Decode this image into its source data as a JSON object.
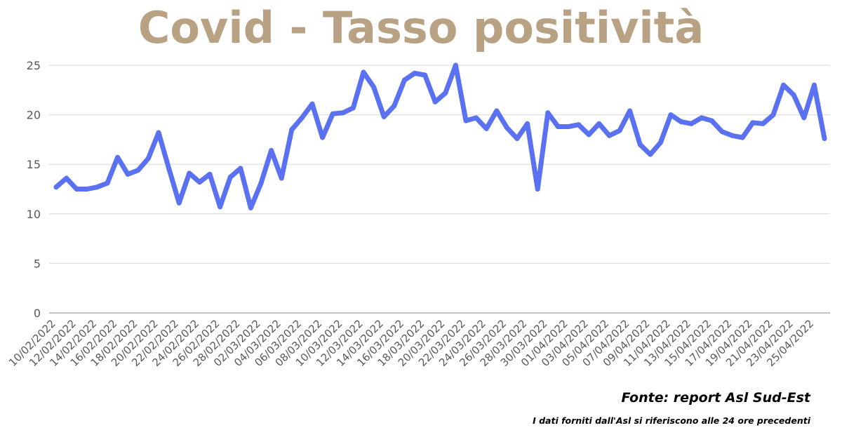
{
  "title": "Covid - Tasso positività",
  "source": "Fonte: report Asl Sud-Est",
  "note": "I dati forniti dall'Asl si riferiscono alle 24 ore precedenti",
  "colors": {
    "title": "#b9a184",
    "line": "#5a72f2",
    "grid": "#d9d9d9",
    "axis": "#9e9e9e",
    "tick_text": "#595959"
  },
  "chart_data": {
    "type": "line",
    "title": "Covid - Tasso positività",
    "xlabel": "",
    "ylabel": "",
    "ylim": [
      0,
      25
    ],
    "yticks": [
      0,
      5,
      10,
      15,
      20,
      25
    ],
    "grid": true,
    "legend": "none",
    "x_tick_labels": [
      "10/02/2022",
      "12/02/2022",
      "14/02/2022",
      "16/02/2022",
      "18/02/2022",
      "20/02/2022",
      "22/02/2022",
      "24/02/2022",
      "26/02/2022",
      "28/02/2022",
      "02/03/2022",
      "04/03/2022",
      "06/03/2022",
      "08/03/2022",
      "10/03/2022",
      "12/03/2022",
      "14/03/2022",
      "16/03/2022",
      "18/03/2022",
      "20/03/2022",
      "22/03/2022",
      "24/03/2022",
      "26/03/2022",
      "28/03/2022",
      "30/03/2022",
      "01/04/2022",
      "03/04/2022",
      "05/04/2022",
      "07/04/2022",
      "09/04/2022",
      "11/04/2022",
      "13/04/2022",
      "15/04/2022",
      "17/04/2022",
      "19/04/2022",
      "21/04/2022",
      "23/04/2022",
      "25/04/2022"
    ],
    "series": [
      {
        "values": [
          12.7,
          13.6,
          12.5,
          12.5,
          12.7,
          13.1,
          15.7,
          14.0,
          14.4,
          15.6,
          18.2,
          14.6,
          11.1,
          14.1,
          13.2,
          14.0,
          10.7,
          13.7,
          14.6,
          10.6,
          13.1,
          16.4,
          13.6,
          18.5,
          19.7,
          21.1,
          17.7,
          20.1,
          20.2,
          20.7,
          24.3,
          22.8,
          19.8,
          20.9,
          23.5,
          24.2,
          24.0,
          21.3,
          22.2,
          25.0,
          19.4,
          19.7,
          18.6,
          20.4,
          18.7,
          17.6,
          19.1,
          12.5,
          20.2,
          18.8,
          18.8,
          19.0,
          18.0,
          19.1,
          17.9,
          18.4,
          20.4,
          17.0,
          16.0,
          17.2,
          20.0,
          19.3,
          19.1,
          19.7,
          19.4,
          18.3,
          17.9,
          17.7,
          19.2,
          19.1,
          20.0,
          23.0,
          22.0,
          19.7,
          23.0,
          17.6
        ]
      }
    ]
  }
}
